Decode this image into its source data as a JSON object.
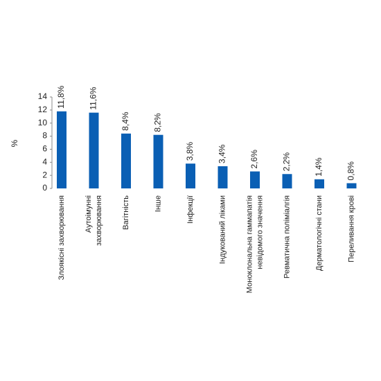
{
  "chart_data": {
    "type": "bar",
    "y_label": "%",
    "categories": [
      "Злоякісні захворювання",
      "Аутоімунні\nзахворювання",
      "Вагітність",
      "Інше",
      "Інфекції",
      "Індукований ліками",
      "Моноклональна гаммапатія\nневідомого значення",
      "Ревматична поліміалгія",
      "Дерматологічні стани",
      "Переливання крові"
    ],
    "values": [
      11.8,
      11.6,
      8.4,
      8.2,
      3.8,
      3.4,
      2.6,
      2.2,
      1.4,
      0.8
    ],
    "value_labels": [
      "11,8%",
      "11,6%",
      "8,4%",
      "8,2%",
      "3,8%",
      "3,4%",
      "2,6%",
      "2,2%",
      "1,4%",
      "0,8%"
    ],
    "color": "#0a5fb4",
    "ylim": [
      0,
      14
    ],
    "yticks": [
      0,
      2,
      4,
      6,
      8,
      10,
      12,
      14
    ],
    "grid": false
  }
}
